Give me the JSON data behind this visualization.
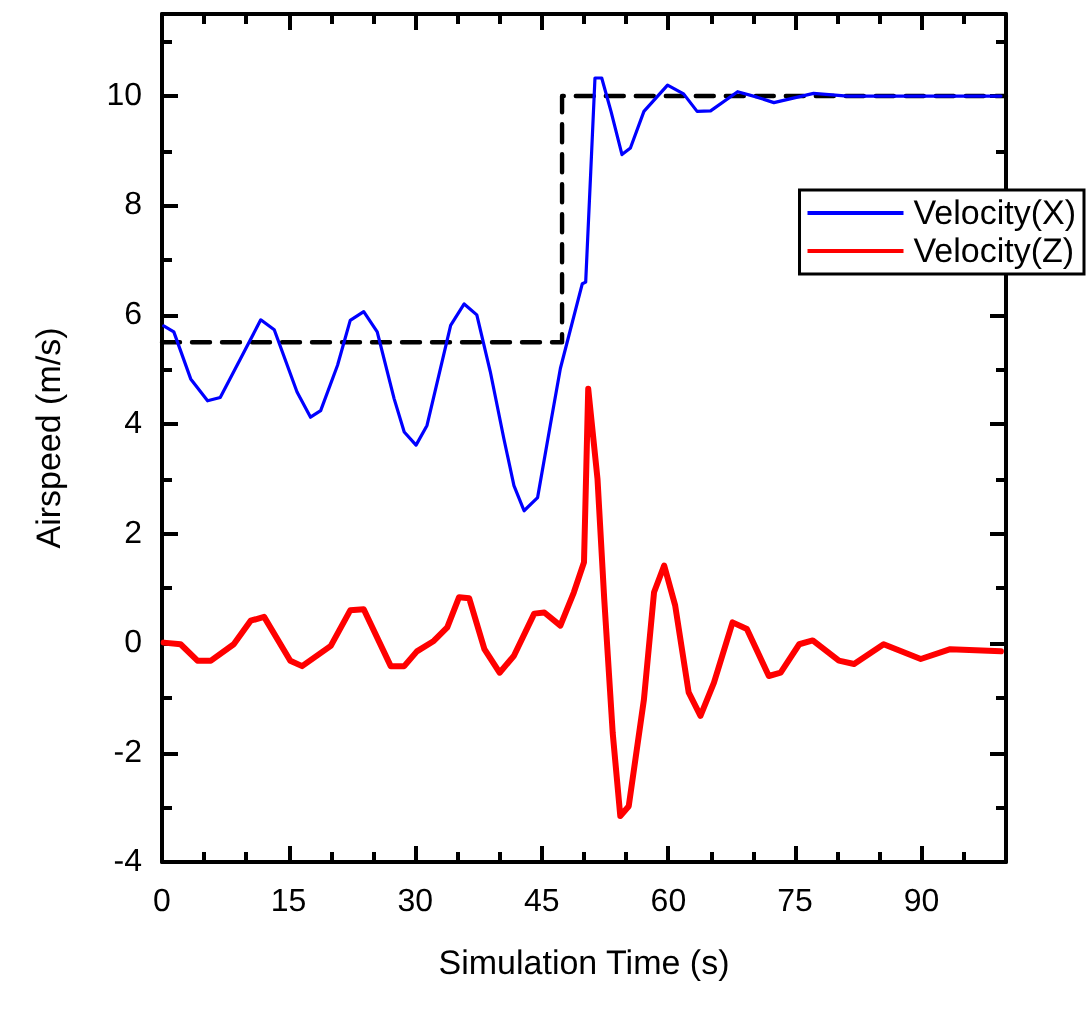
{
  "chart_data": {
    "type": "line",
    "xlabel": "Simulation Time (s)",
    "ylabel": "Airspeed (m/s)",
    "xlim": [
      0,
      100
    ],
    "xticks": [
      0,
      15,
      30,
      45,
      60,
      75,
      90
    ],
    "ylim": [
      -4,
      11.5
    ],
    "yticks": [
      -4,
      -2,
      0,
      2,
      4,
      6,
      8,
      10
    ],
    "grid": false,
    "legend": "right",
    "marker": "none",
    "series": [
      {
        "type": "step",
        "color": "#000000",
        "line_style": "dashed",
        "x": [
          0,
          47.4,
          100
        ],
        "values": [
          5.5,
          10,
          10
        ]
      },
      {
        "name": "Velocity(X)",
        "color": "#0000ff",
        "x": [
          0.2,
          1.4,
          3.4,
          5.4,
          6.9,
          9.3,
          11.7,
          13.3,
          16.0,
          17.6,
          18.8,
          20.8,
          22.3,
          23.9,
          25.5,
          27.5,
          28.7,
          30.1,
          31.4,
          34.2,
          35.8,
          37.3,
          38.9,
          40.5,
          41.7,
          42.9,
          44.5,
          46.0,
          47.2,
          49.8,
          50.2,
          50.8,
          51.3,
          52.1,
          53.2,
          54.5,
          55.5,
          57.1,
          59.9,
          61.8,
          63.4,
          65.0,
          68.2,
          70.5,
          72.5,
          77.2,
          81.2,
          85.2,
          94.6,
          99.4
        ],
        "values": [
          5.8,
          5.69,
          4.83,
          4.43,
          4.49,
          5.2,
          5.91,
          5.73,
          4.59,
          4.13,
          4.25,
          5.08,
          5.9,
          6.06,
          5.69,
          4.47,
          3.86,
          3.62,
          3.98,
          5.81,
          6.2,
          6.0,
          4.96,
          3.74,
          2.88,
          2.42,
          2.66,
          3.98,
          5.02,
          6.57,
          6.6,
          8.62,
          10.33,
          10.33,
          9.72,
          8.93,
          9.05,
          9.72,
          10.2,
          10.04,
          9.72,
          9.73,
          10.08,
          9.98,
          9.88,
          10.05,
          10.0,
          10.0,
          10.0,
          10.0
        ]
      },
      {
        "name": "Velocity(Z)",
        "color": "#ff0000",
        "x": [
          0.2,
          2.2,
          4.2,
          5.8,
          8.5,
          10.5,
          12.1,
          15.2,
          16.6,
          20.0,
          22.3,
          23.9,
          27.1,
          28.7,
          30.2,
          32.2,
          33.8,
          35.2,
          36.4,
          38.2,
          40.0,
          41.7,
          44.1,
          45.3,
          47.2,
          48.8,
          50.0,
          50.5,
          51.6,
          52.4,
          53.4,
          54.3,
          55.3,
          57.1,
          58.3,
          59.5,
          60.8,
          62.4,
          63.8,
          65.4,
          67.6,
          69.3,
          71.9,
          73.3,
          75.5,
          77.1,
          80.2,
          82.0,
          85.5,
          89.9,
          93.4,
          99.4
        ],
        "values": [
          0.01,
          -0.02,
          -0.32,
          -0.32,
          -0.02,
          0.41,
          0.48,
          -0.32,
          -0.42,
          -0.05,
          0.6,
          0.62,
          -0.42,
          -0.42,
          -0.15,
          0.04,
          0.29,
          0.84,
          0.82,
          -0.11,
          -0.54,
          -0.23,
          0.54,
          0.56,
          0.32,
          0.93,
          1.48,
          4.65,
          3.0,
          0.8,
          -1.64,
          -3.16,
          -2.98,
          -1.03,
          0.93,
          1.42,
          0.69,
          -0.9,
          -1.33,
          -0.72,
          0.38,
          0.26,
          -0.6,
          -0.54,
          -0.02,
          0.05,
          -0.32,
          -0.38,
          -0.02,
          -0.29,
          -0.11,
          -0.15
        ]
      }
    ]
  }
}
